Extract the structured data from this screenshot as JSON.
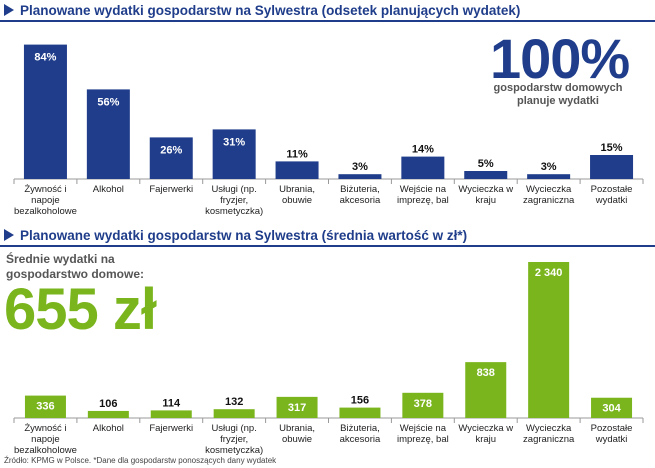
{
  "chart_data": [
    {
      "type": "bar",
      "title": "Planowane wydatki gospodarstw na Sylwestra (odsetek planujących wydatek)",
      "categories": [
        "Żywność i napoje bezalkoholowe",
        "Alkohol",
        "Fajerwerki",
        "Usługi (np. fryzjer, kosmetyczka)",
        "Ubrania, obuwie",
        "Biżuteria, akcesoria",
        "Wejście na imprezę, bal",
        "Wycieczka w kraju",
        "Wycieczka zagraniczna",
        "Pozostałe wydatki"
      ],
      "category_lines": [
        [
          "Żywność i",
          "napoje",
          "bezalkoholowe"
        ],
        [
          "Alkohol"
        ],
        [
          "Fajerwerki"
        ],
        [
          "Usługi (np.",
          "fryzjer,",
          "kosmetyczka)"
        ],
        [
          "Ubrania,",
          "obuwie"
        ],
        [
          "Biżuteria,",
          "akcesoria"
        ],
        [
          "Wejście na",
          "imprezę, bal"
        ],
        [
          "Wycieczka w",
          "kraju"
        ],
        [
          "Wycieczka",
          "zagraniczna"
        ],
        [
          "Pozostałe",
          "wydatki"
        ]
      ],
      "values": [
        84,
        56,
        26,
        31,
        11,
        3,
        14,
        5,
        3,
        15
      ],
      "value_labels": [
        "84%",
        "56%",
        "26%",
        "31%",
        "11%",
        "3%",
        "14%",
        "5%",
        "3%",
        "15%"
      ],
      "ylim": [
        0,
        100
      ],
      "grid": false,
      "color": "#1f3d8a"
    },
    {
      "type": "bar",
      "title": "Planowane wydatki gospodarstw na Sylwestra (średnia wartość w zł*)",
      "categories": [
        "Żywność i napoje bezalkoholowe",
        "Alkohol",
        "Fajerwerki",
        "Usługi (np. fryzjer, kosmetyczka)",
        "Ubrania, obuwie",
        "Biżuteria, akcesoria",
        "Wejście na imprezę, bal",
        "Wycieczka w kraju",
        "Wycieczka zagraniczna",
        "Pozostałe wydatki"
      ],
      "category_lines": [
        [
          "Żywność i",
          "napoje",
          "bezalkoholowe"
        ],
        [
          "Alkohol"
        ],
        [
          "Fajerwerki"
        ],
        [
          "Usługi (np.",
          "fryzjer,",
          "kosmetyczka)"
        ],
        [
          "Ubrania,",
          "obuwie"
        ],
        [
          "Biżuteria,",
          "akcesoria"
        ],
        [
          "Wejście na",
          "imprezę, bal"
        ],
        [
          "Wycieczka w",
          "kraju"
        ],
        [
          "Wycieczka",
          "zagraniczna"
        ],
        [
          "Pozostałe",
          "wydatki"
        ]
      ],
      "values": [
        336,
        106,
        114,
        132,
        317,
        156,
        378,
        838,
        2340,
        304
      ],
      "value_labels": [
        "336",
        "106",
        "114",
        "132",
        "317",
        "156",
        "378",
        "838",
        "2 340",
        "304"
      ],
      "ylim": [
        0,
        2340
      ],
      "grid": false,
      "color": "#7ab51d"
    }
  ],
  "highlight_top": {
    "value": "100%",
    "caption": "gospodarstw domowych planuje wydatki",
    "color": "#1f3d8a"
  },
  "highlight_bottom": {
    "caption": "Średnie wydatki na gospodarstwo domowe:",
    "value": "655 zł",
    "color": "#7ab51d"
  },
  "source": "Źródło: KPMG w Polsce. *Dane dla gospodarstw ponoszących dany wydatek"
}
